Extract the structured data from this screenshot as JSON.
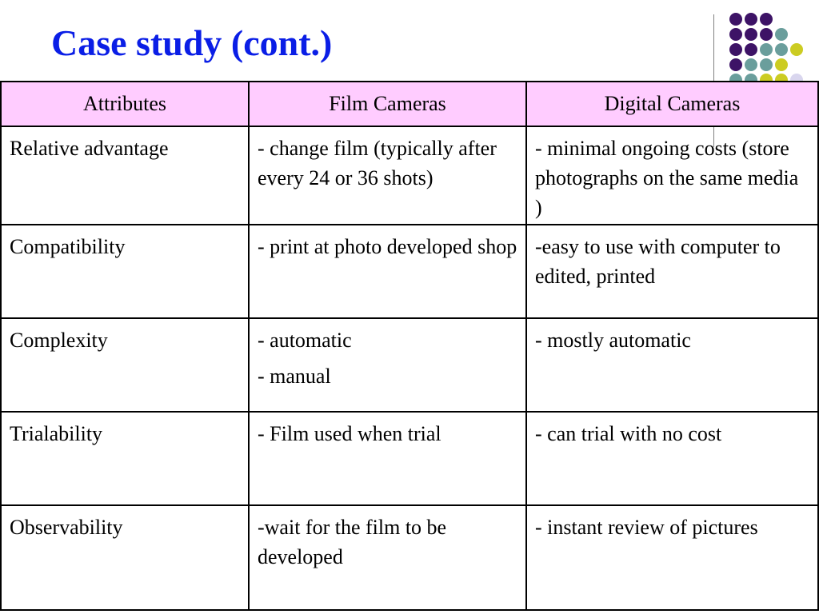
{
  "slide": {
    "title": "Case study (cont.)"
  },
  "decoration": {
    "dot_colors": {
      "purple": "#3d1366",
      "teal": "#6a9e9c",
      "yellow": "#cccc22",
      "lavender": "#d9d6ee"
    }
  },
  "table": {
    "header_background": "#ffccff",
    "headers": [
      "Attributes",
      "Film Cameras",
      "Digital Cameras"
    ],
    "rows": [
      {
        "attribute": "Relative advantage",
        "film": [
          "- change film (typically after every 24 or 36 shots)"
        ],
        "digital": [
          "- minimal ongoing costs (store photographs on the same media )"
        ]
      },
      {
        "attribute": "Compatibility",
        "film": [
          "- print at photo developed shop"
        ],
        "digital": [
          "-easy to use with computer to edited, printed"
        ]
      },
      {
        "attribute": "Complexity",
        "film": [
          "- automatic",
          "- manual"
        ],
        "digital": [
          "- mostly automatic"
        ]
      },
      {
        "attribute": "Trialability",
        "film": [
          "- Film used when trial"
        ],
        "digital": [
          "- can trial with no cost"
        ]
      },
      {
        "attribute": "Observability",
        "film": [
          "-wait for the film to be developed"
        ],
        "digital": [
          "- instant review of pictures"
        ]
      }
    ]
  }
}
